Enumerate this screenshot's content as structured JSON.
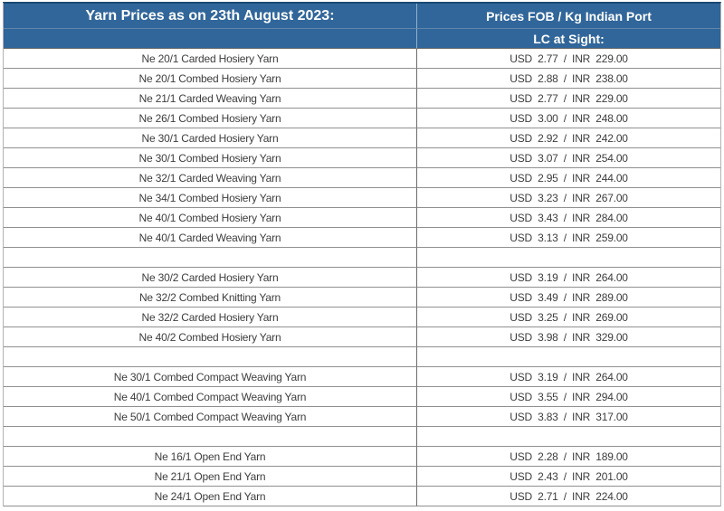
{
  "table": {
    "title": "Yarn Prices as on 23th August 2023:",
    "price_header": "Prices FOB / Kg Indian Port",
    "terms_header": "LC at Sight:",
    "colors": {
      "header_bg": "#31669a",
      "header_text": "#ffffff",
      "header_top_border": "#1b4a74",
      "row_border": "#909090",
      "column_divider": "#6b6b6b",
      "body_text": "#3d3d3d"
    },
    "rows": [
      {
        "name": "Ne 20/1 Carded Hosiery Yarn",
        "price": "USD 2.77 / INR 229.00"
      },
      {
        "name": "Ne 20/1 Combed Hosiery Yarn",
        "price": "USD 2.88 / INR 238.00"
      },
      {
        "name": "Ne 21/1 Carded Weaving Yarn",
        "price": "USD 2.77 / INR 229.00"
      },
      {
        "name": "Ne 26/1 Combed Hosiery Yarn",
        "price": "USD 3.00 / INR 248.00"
      },
      {
        "name": "Ne 30/1 Carded Hosiery Yarn",
        "price": "USD 2.92 / INR 242.00"
      },
      {
        "name": "Ne 30/1 Combed Hosiery Yarn",
        "price": "USD 3.07 / INR 254.00"
      },
      {
        "name": "Ne 32/1 Carded Weaving Yarn",
        "price": "USD 2.95 / INR 244.00"
      },
      {
        "name": "Ne 34/1 Combed Hosiery Yarn",
        "price": "USD 3.23 / INR 267.00"
      },
      {
        "name": "Ne 40/1 Combed Hosiery Yarn",
        "price": "USD 3.43 / INR 284.00"
      },
      {
        "name": "Ne 40/1 Carded Weaving Yarn",
        "price": "USD 3.13 / INR 259.00"
      },
      {
        "name": "",
        "price": ""
      },
      {
        "name": "Ne 30/2 Carded Hosiery Yarn",
        "price": "USD 3.19 / INR 264.00"
      },
      {
        "name": "Ne 32/2 Combed Knitting Yarn",
        "price": "USD 3.49 / INR 289.00"
      },
      {
        "name": "Ne 32/2 Carded Hosiery Yarn",
        "price": "USD 3.25 / INR 269.00"
      },
      {
        "name": "Ne 40/2 Combed Hosiery Yarn",
        "price": "USD 3.98 / INR 329.00"
      },
      {
        "name": "",
        "price": ""
      },
      {
        "name": "Ne 30/1 Combed Compact Weaving Yarn",
        "price": "USD 3.19 / INR 264.00"
      },
      {
        "name": "Ne 40/1 Combed Compact Weaving Yarn",
        "price": "USD 3.55 / INR 294.00"
      },
      {
        "name": "Ne 50/1 Combed Compact Weaving Yarn",
        "price": "USD 3.83 / INR 317.00"
      },
      {
        "name": "",
        "price": ""
      },
      {
        "name": "Ne 16/1 Open End Yarn",
        "price": "USD 2.28 / INR 189.00"
      },
      {
        "name": "Ne 21/1 Open End Yarn",
        "price": "USD 2.43 / INR 201.00"
      },
      {
        "name": "Ne 24/1 Open End Yarn",
        "price": "USD 2.71 / INR 224.00"
      }
    ]
  }
}
